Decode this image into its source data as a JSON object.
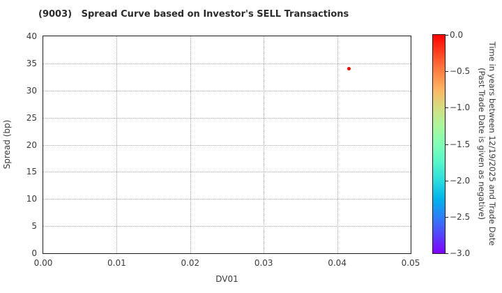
{
  "colors": {
    "background": "#ffffff",
    "axis": "#1f1f1f",
    "grid": "#ababab",
    "tick_text": "#3a3a3a",
    "title_text": "#2b2b2b",
    "point_red": "#ff0000"
  },
  "chart_data": {
    "type": "scatter",
    "title": "(9003)   Spread Curve based on Investor's SELL Transactions",
    "xlabel": "DV01",
    "ylabel": "Spread (bp)",
    "xlim": [
      0.0,
      0.05
    ],
    "ylim": [
      0,
      40
    ],
    "grid": true,
    "x_tick_values": [
      0,
      0.01,
      0.02,
      0.03,
      0.04,
      0.05
    ],
    "x_tick_labels": [
      "0.00",
      "0.01",
      "0.02",
      "0.03",
      "0.04",
      "0.05"
    ],
    "y_tick_values": [
      0,
      5,
      10,
      15,
      20,
      25,
      30,
      35,
      40
    ],
    "y_tick_labels": [
      "0",
      "5",
      "10",
      "15",
      "20",
      "25",
      "30",
      "35",
      "40"
    ],
    "points": [
      {
        "x": 0.0416,
        "y": 34.0,
        "time_years": 0.0,
        "color": "#ff0000"
      }
    ],
    "colorbar": {
      "colormap": "rainbow",
      "value_top": 0.0,
      "value_bottom": -3.0,
      "tick_labels": [
        "0.0",
        "−0.5",
        "−1.0",
        "−1.5",
        "−2.0",
        "−2.5",
        "−3.0"
      ],
      "label_line1": "Time in years between 12/19/2025 and Trade Date",
      "label_line2": "(Past Trade Date is given as negative)",
      "gradient_stops": [
        {
          "pos": 0,
          "color": "#ff0000"
        },
        {
          "pos": 8.3,
          "color": "#ff4221"
        },
        {
          "pos": 16.7,
          "color": "#ff8042"
        },
        {
          "pos": 25,
          "color": "#ffb462"
        },
        {
          "pos": 33.3,
          "color": "#d4dd80"
        },
        {
          "pos": 41.7,
          "color": "#aaf69b"
        },
        {
          "pos": 50,
          "color": "#80ffb4"
        },
        {
          "pos": 58.3,
          "color": "#55f6ca"
        },
        {
          "pos": 66.7,
          "color": "#2bdddd"
        },
        {
          "pos": 75,
          "color": "#00b4ec"
        },
        {
          "pos": 83.3,
          "color": "#2b80f6"
        },
        {
          "pos": 91.7,
          "color": "#5542fd"
        },
        {
          "pos": 100,
          "color": "#8000ff"
        }
      ]
    }
  }
}
